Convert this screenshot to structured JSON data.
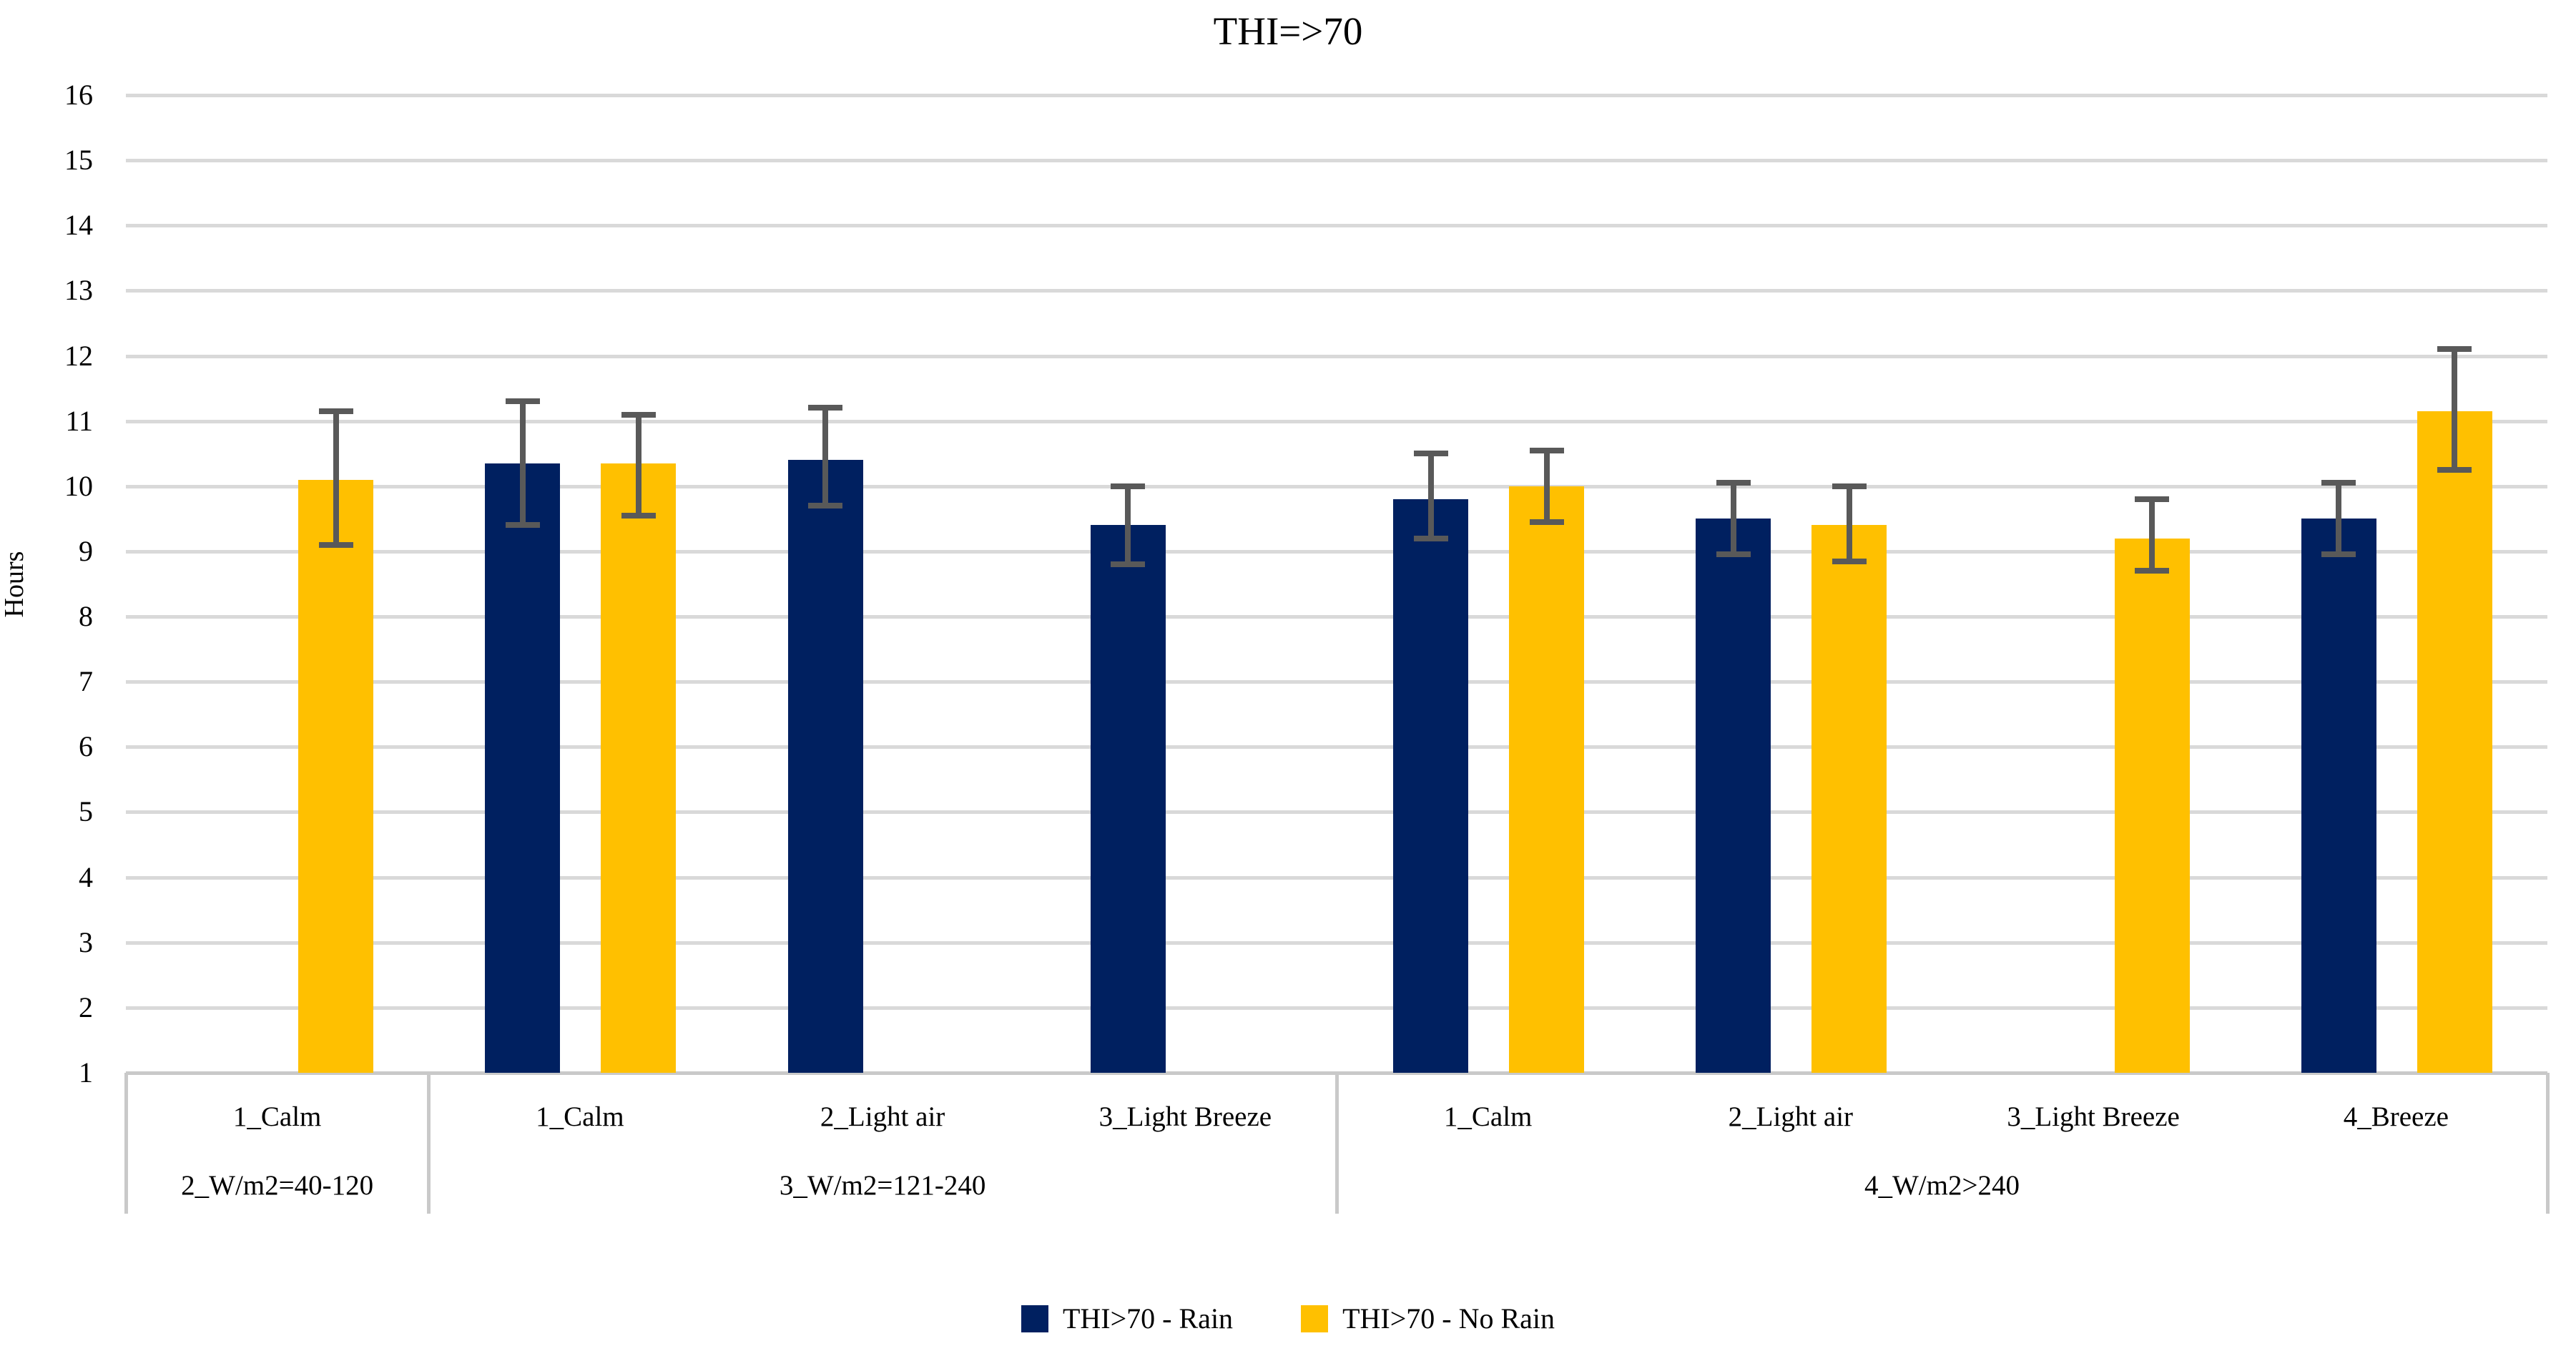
{
  "title": "THI=>70",
  "y_axis": {
    "label": "Hours",
    "min": 1,
    "max": 16,
    "ticks": [
      16,
      15,
      14,
      13,
      12,
      11,
      10,
      9,
      8,
      7,
      6,
      5,
      4,
      3,
      2,
      1
    ]
  },
  "legend": {
    "items": [
      {
        "label": "THI>70 - Rain",
        "color": "#002060"
      },
      {
        "label": "THI>70 - No Rain",
        "color": "#FFC000"
      }
    ]
  },
  "colors": {
    "rain": "#002060",
    "no_rain": "#FFC000",
    "gridline": "#d9d9d9",
    "axis": "#c9c9c9",
    "error_bar": "#595959"
  },
  "chart_data": {
    "type": "bar",
    "title": "THI=>70",
    "xlabel": "",
    "ylabel": "Hours",
    "ylim": [
      1,
      16
    ],
    "grid": true,
    "legend_position": "bottom",
    "series_names": [
      "THI>70 - Rain",
      "THI>70 - No Rain"
    ],
    "groups": [
      {
        "label": "2_W/m2=40-120",
        "categories": [
          {
            "label": "1_Calm",
            "rain": null,
            "no_rain": {
              "value": 10.1,
              "err_low": 9.1,
              "err_high": 11.15
            }
          }
        ]
      },
      {
        "label": "3_W/m2=121-240",
        "categories": [
          {
            "label": "1_Calm",
            "rain": {
              "value": 10.35,
              "err_low": 9.4,
              "err_high": 11.3
            },
            "no_rain": {
              "value": 10.35,
              "err_low": 9.55,
              "err_high": 11.1
            }
          },
          {
            "label": "2_Light air",
            "rain": {
              "value": 10.4,
              "err_low": 9.7,
              "err_high": 11.2
            },
            "no_rain": null
          },
          {
            "label": "3_Light Breeze",
            "rain": {
              "value": 9.4,
              "err_low": 8.8,
              "err_high": 10.0
            },
            "no_rain": null
          }
        ]
      },
      {
        "label": "4_W/m2>240",
        "categories": [
          {
            "label": "1_Calm",
            "rain": {
              "value": 9.8,
              "err_low": 9.2,
              "err_high": 10.5
            },
            "no_rain": {
              "value": 10.0,
              "err_low": 9.45,
              "err_high": 10.55
            }
          },
          {
            "label": "2_Light air",
            "rain": {
              "value": 9.5,
              "err_low": 8.95,
              "err_high": 10.05
            },
            "no_rain": {
              "value": 9.4,
              "err_low": 8.85,
              "err_high": 10.0
            }
          },
          {
            "label": "3_Light Breeze",
            "rain": null,
            "no_rain": {
              "value": 9.2,
              "err_low": 8.7,
              "err_high": 9.8
            }
          },
          {
            "label": "4_Breeze",
            "rain": {
              "value": 9.5,
              "err_low": 8.95,
              "err_high": 10.05
            },
            "no_rain": {
              "value": 11.15,
              "err_low": 10.25,
              "err_high": 12.1
            }
          }
        ]
      }
    ]
  }
}
